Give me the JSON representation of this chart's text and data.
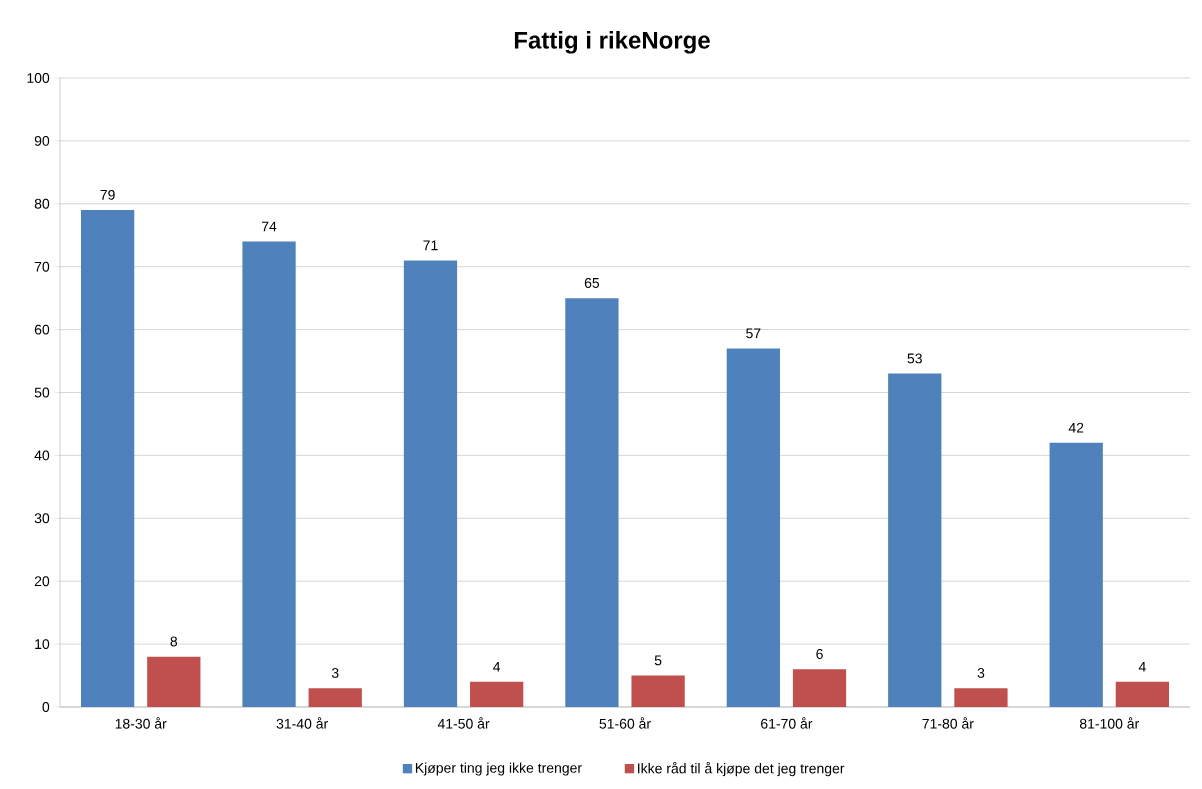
{
  "chart_data": {
    "type": "bar",
    "title": "Fattig i rikeNorge",
    "categories": [
      "18-30 år",
      "31-40 år",
      "41-50 år",
      "51-60 år",
      "61-70 år",
      "71-80 år",
      "81-100 år"
    ],
    "series": [
      {
        "name": "Kjøper ting jeg ikke trenger",
        "color": "#4f81bd",
        "values": [
          79,
          74,
          71,
          65,
          57,
          53,
          42
        ]
      },
      {
        "name": "Ikke råd til å kjøpe det jeg trenger",
        "color": "#c0504d",
        "values": [
          8,
          3,
          4,
          5,
          6,
          3,
          4
        ]
      }
    ],
    "ylim": [
      0,
      100
    ],
    "yticks": [
      0,
      10,
      20,
      30,
      40,
      50,
      60,
      70,
      80,
      90,
      100
    ],
    "grid": "y",
    "legend": "bottom",
    "data_labels": true
  }
}
